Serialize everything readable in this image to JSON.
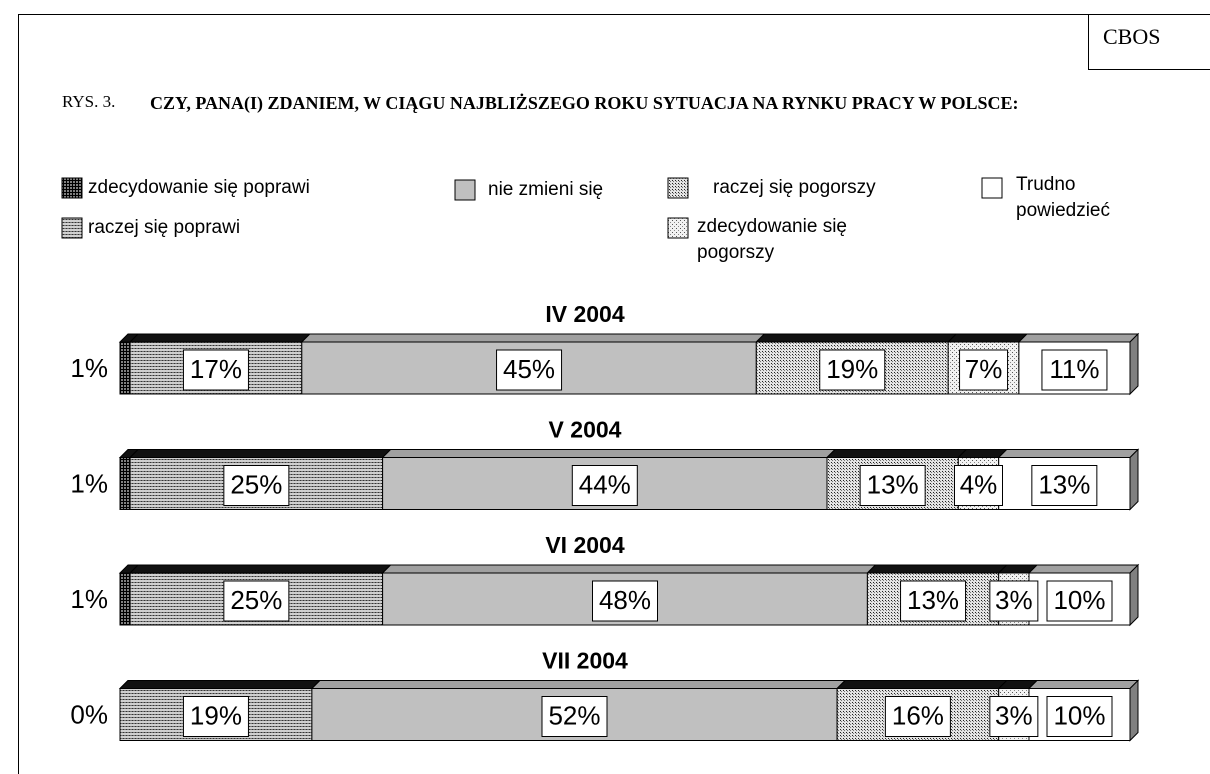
{
  "chart_data": {
    "type": "stacked-bar-horizontal",
    "source": "CBOS",
    "figure_label": "RYS. 3.",
    "title": "CZY, PANA(I) ZDANIEM, W CIĄGU NAJBLIŻSZEGO ROKU SYTUACJA NA RYNKU PRACY W POLSCE:",
    "categories": [
      "IV 2004",
      "V 2004",
      "VI 2004",
      "VII 2004"
    ],
    "xlim": [
      0,
      100
    ],
    "series": [
      {
        "name": "zdecydowanie się poprawi",
        "color": "#808080",
        "values": [
          1,
          1,
          1,
          0
        ],
        "value_labels": [
          "1%",
          "1%",
          "1%",
          "0%"
        ]
      },
      {
        "name": "raczej się poprawi",
        "color": "#d0d0d0",
        "values": [
          17,
          25,
          25,
          19
        ],
        "value_labels": [
          "17%",
          "25%",
          "25%",
          "19%"
        ]
      },
      {
        "name": "nie zmieni się",
        "color": "#c0c0c0",
        "values": [
          45,
          44,
          48,
          52
        ],
        "value_labels": [
          "45%",
          "44%",
          "48%",
          "52%"
        ]
      },
      {
        "name": "raczej się pogorszy",
        "color": "#e4e4e4",
        "values": [
          19,
          13,
          13,
          16
        ],
        "value_labels": [
          "19%",
          "13%",
          "13%",
          "16%"
        ]
      },
      {
        "name": "zdecydowanie się pogorszy",
        "color": "#f2f2f2",
        "values": [
          7,
          4,
          3,
          3
        ],
        "value_labels": [
          "7%",
          "4%",
          "3%",
          "3%"
        ]
      },
      {
        "name": "Trudno powiedzieć",
        "color": "#ffffff",
        "values": [
          11,
          13,
          10,
          10
        ],
        "value_labels": [
          "11%",
          "13%",
          "10%",
          "10%"
        ]
      }
    ]
  }
}
